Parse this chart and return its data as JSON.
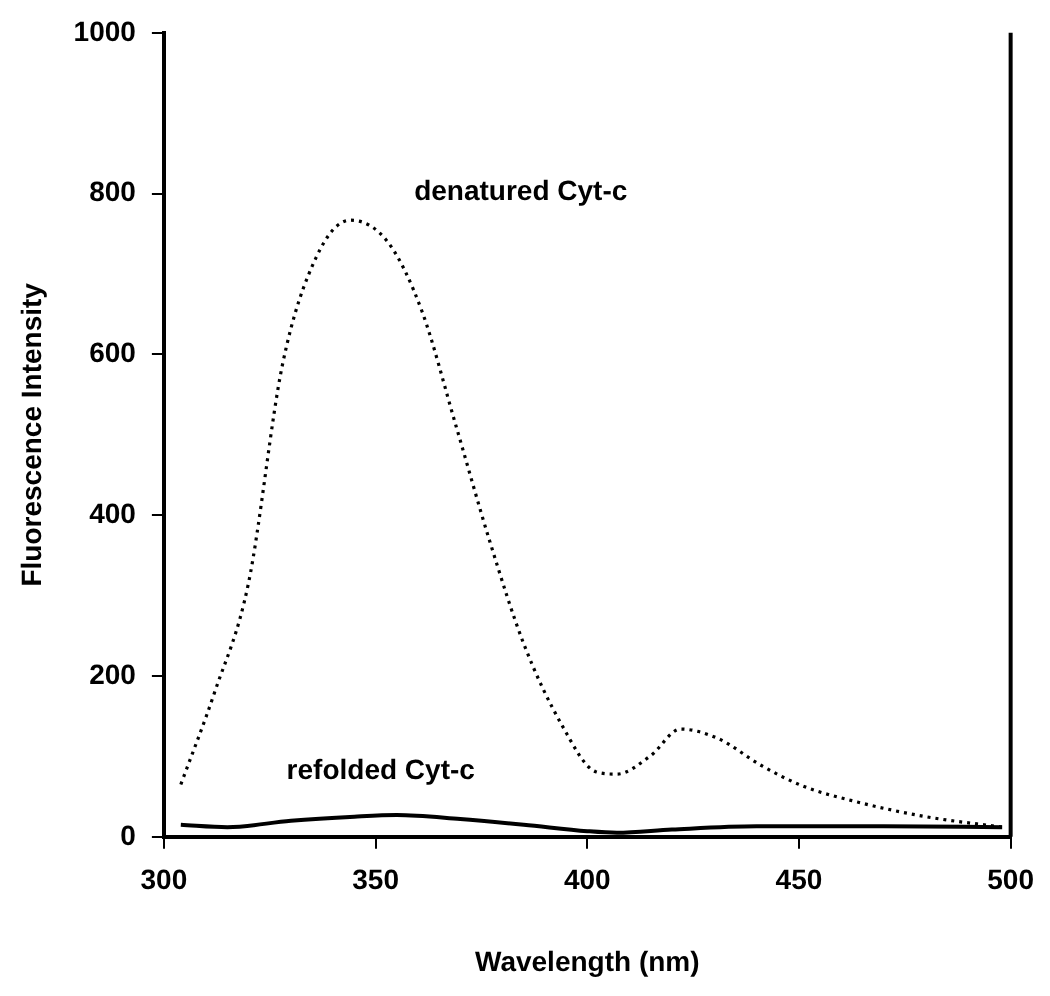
{
  "chart_data": {
    "type": "line",
    "xlabel": "Wavelength (nm)",
    "ylabel": "Fluorescence Intensity",
    "xlim": [
      300,
      500
    ],
    "xticks": [
      300,
      350,
      400,
      450,
      500
    ],
    "ylim": [
      0,
      1000
    ],
    "yticks": [
      0,
      200,
      400,
      600,
      800,
      1000
    ],
    "grid": false,
    "legend": false,
    "marker": "none",
    "series": [
      {
        "name": "denatured Cyt-c",
        "color": "#000000",
        "line_style": "dotted",
        "x": [
          304,
          312,
          320,
          328,
          336,
          344,
          353,
          361,
          369,
          377,
          385,
          394,
          402,
          407,
          415,
          422,
          431,
          441,
          451,
          464,
          480,
          498
        ],
        "values": [
          65,
          180,
          316,
          587,
          721,
          767,
          739,
          653,
          511,
          367,
          240,
          139,
          81,
          78,
          101,
          134,
          122,
          89,
          63,
          43,
          25,
          12
        ]
      },
      {
        "name": "refolded Cyt-c",
        "color": "#000000",
        "line_style": "solid",
        "x": [
          304,
          315,
          330,
          345,
          355,
          370,
          385,
          400,
          407,
          420,
          440,
          470,
          498
        ],
        "values": [
          15,
          12,
          20,
          25,
          27,
          22,
          15,
          7,
          5,
          9,
          13,
          13,
          12
        ]
      }
    ]
  }
}
